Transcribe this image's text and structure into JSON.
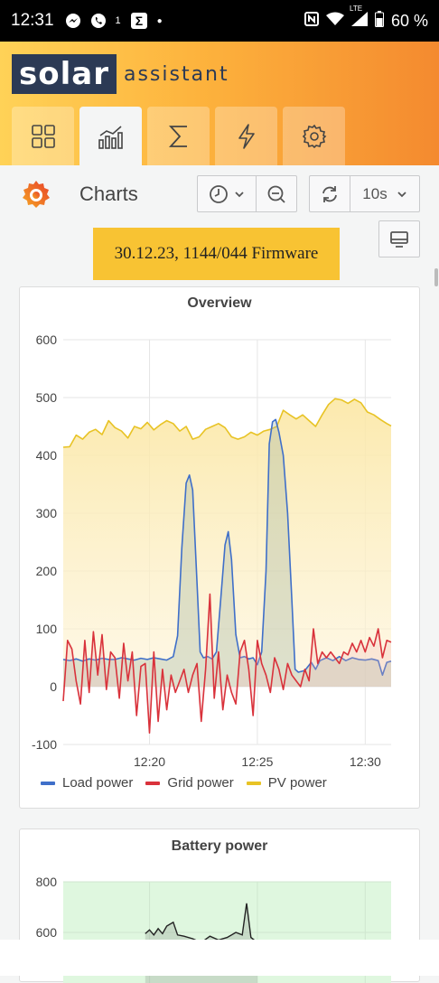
{
  "status_bar": {
    "time": "12:31",
    "notif_count": "1",
    "battery": "60 %",
    "network": "LTE"
  },
  "app": {
    "logo_word1": "solar",
    "logo_word2": "assistant",
    "tabs": [
      {
        "icon": "dashboard-grid-icon",
        "active": false
      },
      {
        "icon": "charts-icon",
        "active": true
      },
      {
        "icon": "totals-sigma-icon",
        "active": false
      },
      {
        "icon": "power-lightning-icon",
        "active": false
      },
      {
        "icon": "settings-gear-icon",
        "active": false
      }
    ]
  },
  "toolbar": {
    "title": "Charts",
    "refresh_interval": "10s"
  },
  "banner": {
    "text": "30.12.23, 1144/044 Firmware"
  },
  "colors": {
    "load": "#3f6fc9",
    "grid": "#d9323b",
    "pv": "#e8c325",
    "pv_fill": "#fcefc4",
    "battery_fill": "#dff7df",
    "accent": "#f8c333"
  },
  "chart_data": [
    {
      "title": "Overview",
      "type": "line",
      "ylim": [
        -100,
        600
      ],
      "y_ticks": [
        "600",
        "500",
        "400",
        "300",
        "200",
        "100",
        "0",
        "-100"
      ],
      "x_ticks": [
        "12:20",
        "12:25",
        "12:30"
      ],
      "x_tick_minutes": [
        20,
        25,
        30
      ],
      "x_range_minutes": [
        16.0,
        31.2
      ],
      "series": [
        {
          "name": "Load power",
          "color": "#3f6fc9",
          "points": [
            [
              16.0,
              47
            ],
            [
              16.3,
              45
            ],
            [
              16.6,
              48
            ],
            [
              16.9,
              44
            ],
            [
              17.2,
              48
            ],
            [
              17.5,
              46
            ],
            [
              17.8,
              49
            ],
            [
              18.1,
              47
            ],
            [
              18.4,
              47
            ],
            [
              18.7,
              50
            ],
            [
              19.0,
              48
            ],
            [
              19.3,
              46
            ],
            [
              19.6,
              49
            ],
            [
              19.9,
              47
            ],
            [
              20.2,
              50
            ],
            [
              20.5,
              48
            ],
            [
              20.8,
              46
            ],
            [
              21.1,
              52
            ],
            [
              21.3,
              88
            ],
            [
              21.5,
              240
            ],
            [
              21.7,
              352
            ],
            [
              21.85,
              366
            ],
            [
              22.0,
              340
            ],
            [
              22.2,
              180
            ],
            [
              22.35,
              60
            ],
            [
              22.5,
              50
            ],
            [
              22.7,
              52
            ],
            [
              22.9,
              48
            ],
            [
              23.1,
              60
            ],
            [
              23.3,
              150
            ],
            [
              23.5,
              245
            ],
            [
              23.65,
              268
            ],
            [
              23.8,
              220
            ],
            [
              24.0,
              90
            ],
            [
              24.2,
              50
            ],
            [
              24.4,
              52
            ],
            [
              24.6,
              48
            ],
            [
              24.8,
              50
            ],
            [
              25.0,
              38
            ],
            [
              25.2,
              60
            ],
            [
              25.4,
              200
            ],
            [
              25.55,
              420
            ],
            [
              25.7,
              458
            ],
            [
              25.85,
              462
            ],
            [
              26.0,
              440
            ],
            [
              26.2,
              400
            ],
            [
              26.4,
              300
            ],
            [
              26.6,
              150
            ],
            [
              26.75,
              30
            ],
            [
              26.9,
              25
            ],
            [
              27.2,
              28
            ],
            [
              27.5,
              42
            ],
            [
              27.7,
              30
            ],
            [
              27.9,
              45
            ],
            [
              28.2,
              50
            ],
            [
              28.5,
              45
            ],
            [
              28.8,
              52
            ],
            [
              29.1,
              45
            ],
            [
              29.4,
              50
            ],
            [
              29.7,
              47
            ],
            [
              30.0,
              46
            ],
            [
              30.3,
              48
            ],
            [
              30.6,
              45
            ],
            [
              30.8,
              20
            ],
            [
              31.0,
              42
            ],
            [
              31.2,
              44
            ]
          ]
        },
        {
          "name": "Grid power",
          "color": "#d9323b",
          "points": [
            [
              16.0,
              -25
            ],
            [
              16.2,
              80
            ],
            [
              16.4,
              65
            ],
            [
              16.6,
              10
            ],
            [
              16.8,
              -30
            ],
            [
              17.0,
              80
            ],
            [
              17.2,
              -10
            ],
            [
              17.4,
              95
            ],
            [
              17.6,
              20
            ],
            [
              17.8,
              90
            ],
            [
              18.0,
              -5
            ],
            [
              18.2,
              60
            ],
            [
              18.4,
              50
            ],
            [
              18.6,
              -20
            ],
            [
              18.8,
              75
            ],
            [
              19.0,
              10
            ],
            [
              19.2,
              60
            ],
            [
              19.4,
              -50
            ],
            [
              19.6,
              35
            ],
            [
              19.8,
              40
            ],
            [
              20.0,
              -80
            ],
            [
              20.2,
              60
            ],
            [
              20.4,
              -60
            ],
            [
              20.6,
              30
            ],
            [
              20.8,
              -40
            ],
            [
              21.0,
              20
            ],
            [
              21.2,
              -10
            ],
            [
              21.4,
              10
            ],
            [
              21.6,
              30
            ],
            [
              21.8,
              -10
            ],
            [
              22.0,
              20
            ],
            [
              22.2,
              40
            ],
            [
              22.4,
              -60
            ],
            [
              22.6,
              30
            ],
            [
              22.8,
              160
            ],
            [
              23.0,
              -20
            ],
            [
              23.2,
              60
            ],
            [
              23.4,
              -40
            ],
            [
              23.6,
              20
            ],
            [
              23.8,
              -10
            ],
            [
              24.0,
              -30
            ],
            [
              24.2,
              60
            ],
            [
              24.4,
              80
            ],
            [
              24.6,
              30
            ],
            [
              24.8,
              -50
            ],
            [
              25.0,
              80
            ],
            [
              25.2,
              40
            ],
            [
              25.4,
              20
            ],
            [
              25.6,
              -10
            ],
            [
              25.8,
              50
            ],
            [
              26.0,
              30
            ],
            [
              26.2,
              -5
            ],
            [
              26.4,
              40
            ],
            [
              26.6,
              20
            ],
            [
              26.8,
              10
            ],
            [
              27.0,
              0
            ],
            [
              27.2,
              30
            ],
            [
              27.4,
              10
            ],
            [
              27.6,
              100
            ],
            [
              27.8,
              40
            ],
            [
              28.0,
              60
            ],
            [
              28.2,
              50
            ],
            [
              28.4,
              60
            ],
            [
              28.6,
              50
            ],
            [
              28.8,
              40
            ],
            [
              29.0,
              60
            ],
            [
              29.2,
              55
            ],
            [
              29.4,
              75
            ],
            [
              29.6,
              60
            ],
            [
              29.8,
              80
            ],
            [
              30.0,
              60
            ],
            [
              30.2,
              85
            ],
            [
              30.4,
              70
            ],
            [
              30.6,
              100
            ],
            [
              30.8,
              50
            ],
            [
              31.0,
              80
            ],
            [
              31.2,
              77
            ]
          ]
        },
        {
          "name": "PV power",
          "color": "#e8c325",
          "points": [
            [
              16.0,
              414
            ],
            [
              16.3,
              415
            ],
            [
              16.6,
              435
            ],
            [
              16.9,
              428
            ],
            [
              17.2,
              440
            ],
            [
              17.5,
              445
            ],
            [
              17.8,
              436
            ],
            [
              18.1,
              460
            ],
            [
              18.4,
              448
            ],
            [
              18.7,
              442
            ],
            [
              19.0,
              430
            ],
            [
              19.3,
              450
            ],
            [
              19.6,
              446
            ],
            [
              19.9,
              457
            ],
            [
              20.2,
              444
            ],
            [
              20.5,
              453
            ],
            [
              20.8,
              460
            ],
            [
              21.1,
              455
            ],
            [
              21.4,
              442
            ],
            [
              21.7,
              450
            ],
            [
              22.0,
              428
            ],
            [
              22.3,
              432
            ],
            [
              22.6,
              445
            ],
            [
              22.9,
              450
            ],
            [
              23.2,
              455
            ],
            [
              23.5,
              448
            ],
            [
              23.8,
              432
            ],
            [
              24.1,
              428
            ],
            [
              24.4,
              432
            ],
            [
              24.7,
              440
            ],
            [
              25.0,
              435
            ],
            [
              25.3,
              442
            ],
            [
              25.6,
              445
            ],
            [
              25.9,
              450
            ],
            [
              26.2,
              478
            ],
            [
              26.5,
              470
            ],
            [
              26.8,
              463
            ],
            [
              27.1,
              470
            ],
            [
              27.4,
              460
            ],
            [
              27.7,
              450
            ],
            [
              28.0,
              470
            ],
            [
              28.3,
              488
            ],
            [
              28.6,
              498
            ],
            [
              28.9,
              496
            ],
            [
              29.2,
              490
            ],
            [
              29.5,
              497
            ],
            [
              29.8,
              491
            ],
            [
              30.1,
              475
            ],
            [
              30.4,
              470
            ],
            [
              30.7,
              462
            ],
            [
              31.0,
              455
            ],
            [
              31.2,
              451
            ]
          ]
        }
      ]
    },
    {
      "title": "Battery power",
      "type": "line",
      "y_ticks": [
        "800",
        "600"
      ],
      "ylim": [
        0,
        800
      ]
    }
  ]
}
